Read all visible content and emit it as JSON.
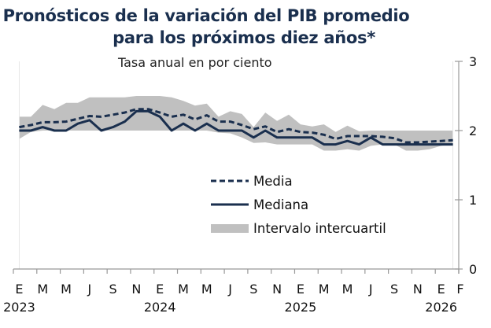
{
  "chart_data": {
    "type": "line",
    "title": "Pronósticos de la variación del PIB promedio",
    "title_line2": "para los próximos diez años*",
    "subtitle": "Tasa anual en por ciento",
    "ylim": [
      0,
      3
    ],
    "yticks": [
      "0",
      "1",
      "2",
      "3"
    ],
    "y_axis_position": "right",
    "xtick_labels": [
      "E",
      "M",
      "M",
      "J",
      "S",
      "N",
      "E",
      "M",
      "M",
      "J",
      "S",
      "N",
      "E",
      "M",
      "M",
      "J",
      "S",
      "N",
      "E",
      "F"
    ],
    "year_labels": [
      {
        "label": "2023",
        "month_index": 0
      },
      {
        "label": "2024",
        "month_index": 12
      },
      {
        "label": "2025",
        "month_index": 24
      },
      {
        "label": "2026",
        "month_index": 36
      }
    ],
    "x_start": "2023-01",
    "x_end": "2026-02",
    "n_months": 38,
    "colors": {
      "line": "#1a2f4e",
      "band": "#c0c0c0",
      "axis": "#999999"
    },
    "legend_position": "center",
    "series": [
      {
        "name": "Media",
        "style": "dashed",
        "values": [
          2.05,
          2.08,
          2.12,
          2.12,
          2.13,
          2.17,
          2.21,
          2.2,
          2.23,
          2.26,
          2.31,
          2.31,
          2.26,
          2.2,
          2.23,
          2.16,
          2.22,
          2.13,
          2.13,
          2.08,
          2.02,
          2.06,
          1.98,
          2.02,
          1.98,
          1.97,
          1.94,
          1.88,
          1.92,
          1.92,
          1.92,
          1.91,
          1.89,
          1.83,
          1.83,
          1.84,
          1.85,
          1.86
        ]
      },
      {
        "name": "Mediana",
        "style": "solid",
        "values": [
          2.0,
          2.0,
          2.05,
          2.0,
          2.0,
          2.1,
          2.15,
          2.0,
          2.05,
          2.13,
          2.28,
          2.28,
          2.2,
          2.0,
          2.1,
          2.0,
          2.1,
          2.0,
          2.0,
          2.0,
          1.9,
          2.0,
          1.9,
          1.9,
          1.9,
          1.9,
          1.8,
          1.8,
          1.85,
          1.8,
          1.9,
          1.8,
          1.8,
          1.8,
          1.8,
          1.8,
          1.8,
          1.8
        ]
      },
      {
        "name": "Intervalo intercuartil",
        "style": "band",
        "upper": [
          2.2,
          2.2,
          2.37,
          2.31,
          2.4,
          2.4,
          2.48,
          2.48,
          2.48,
          2.48,
          2.5,
          2.5,
          2.5,
          2.48,
          2.43,
          2.36,
          2.39,
          2.2,
          2.28,
          2.24,
          2.05,
          2.26,
          2.14,
          2.23,
          2.09,
          2.06,
          2.09,
          1.98,
          2.07,
          1.99,
          2.0,
          2.0,
          2.0,
          2.0,
          2.0,
          2.0,
          2.0,
          2.0
        ],
        "lower": [
          1.88,
          1.98,
          2.0,
          2.0,
          2.0,
          2.0,
          2.0,
          2.0,
          2.0,
          2.0,
          2.0,
          2.0,
          2.0,
          2.0,
          2.0,
          2.0,
          2.0,
          1.97,
          1.96,
          1.9,
          1.82,
          1.83,
          1.8,
          1.8,
          1.8,
          1.8,
          1.71,
          1.71,
          1.73,
          1.71,
          1.78,
          1.8,
          1.8,
          1.71,
          1.71,
          1.73,
          1.78,
          1.8
        ]
      }
    ]
  }
}
